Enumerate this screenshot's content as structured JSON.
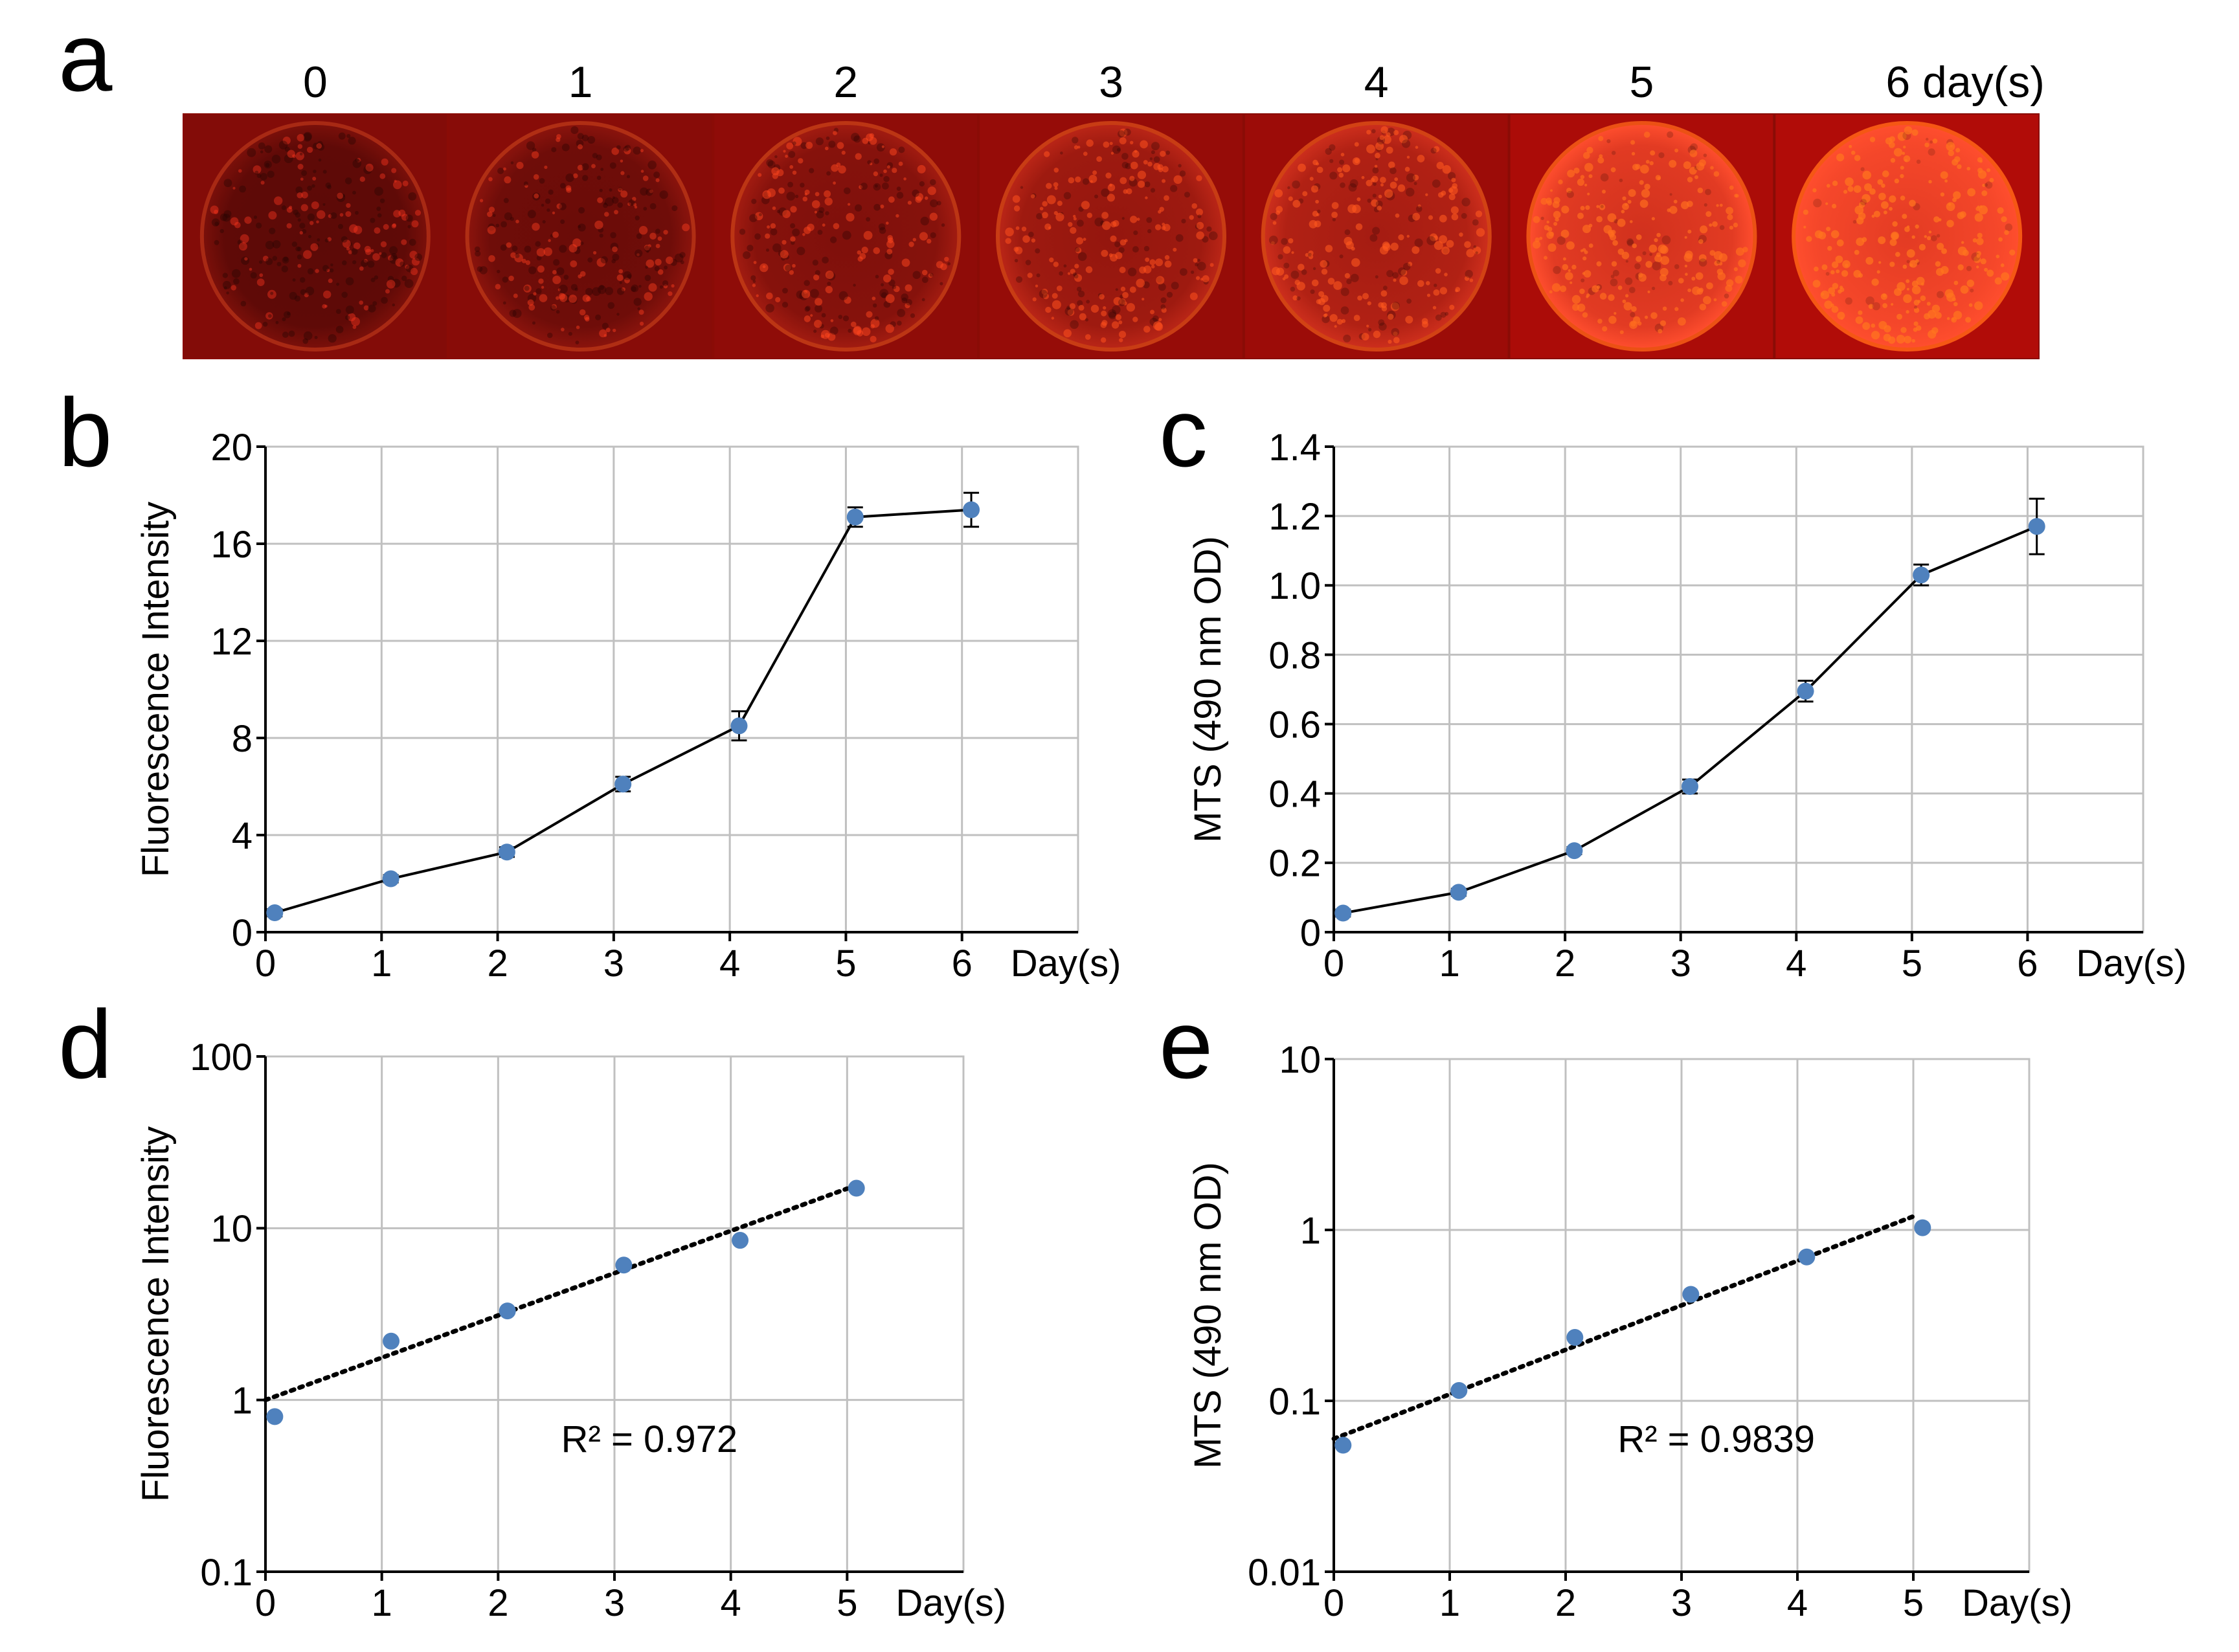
{
  "panel_letters": [
    "a",
    "b",
    "c",
    "d",
    "e"
  ],
  "panel_a": {
    "day_labels": [
      "0",
      "1",
      "2",
      "3",
      "4",
      "5",
      "6 day(s)"
    ],
    "brightness": [
      0.18,
      0.26,
      0.38,
      0.5,
      0.6,
      0.85,
      0.95
    ],
    "base_color": "#d10f08",
    "background_color": "#8a0c06"
  },
  "colors": {
    "marker": "#4f81bd",
    "line": "#000000",
    "grid": "#c0c0c0",
    "axis": "#000000"
  },
  "chart_data": [
    {
      "panel": "b",
      "type": "line",
      "ylabel": "Fluorescence Intensity",
      "xlabel": "Day(s)",
      "scale": "linear",
      "x": [
        0,
        1,
        2,
        3,
        4,
        5,
        6
      ],
      "values": [
        0.8,
        2.2,
        3.3,
        6.1,
        8.5,
        17.1,
        17.4
      ],
      "error": [
        0.15,
        0.15,
        0.2,
        0.3,
        0.6,
        0.4,
        0.7
      ],
      "xlim": [
        0,
        7
      ],
      "ylim": [
        0,
        20
      ],
      "xticks": [
        "0",
        "1",
        "2",
        "3",
        "4",
        "5",
        "6"
      ],
      "yticks": [
        {
          "v": 0,
          "label": "0"
        },
        {
          "v": 4,
          "label": "4"
        },
        {
          "v": 8,
          "label": "8"
        },
        {
          "v": 12,
          "label": "12"
        },
        {
          "v": 16,
          "label": "16"
        },
        {
          "v": 20,
          "label": "20"
        }
      ],
      "grid": true
    },
    {
      "panel": "c",
      "type": "line",
      "ylabel": "MTS (490 nm OD)",
      "xlabel": "Day(s)",
      "scale": "linear",
      "x": [
        0,
        1,
        2,
        3,
        4,
        5,
        6
      ],
      "values": [
        0.055,
        0.115,
        0.235,
        0.42,
        0.695,
        1.03,
        1.17
      ],
      "error": [
        0.01,
        0.01,
        0.01,
        0.02,
        0.03,
        0.03,
        0.08
      ],
      "xlim": [
        0,
        7
      ],
      "ylim": [
        0,
        1.4
      ],
      "xticks": [
        "0",
        "1",
        "2",
        "3",
        "4",
        "5",
        "6"
      ],
      "yticks": [
        {
          "v": 0,
          "label": "0"
        },
        {
          "v": 0.2,
          "label": "0.2"
        },
        {
          "v": 0.4,
          "label": "0.4"
        },
        {
          "v": 0.6,
          "label": "0.6"
        },
        {
          "v": 0.8,
          "label": "0.8"
        },
        {
          "v": 1.0,
          "label": "1.0"
        },
        {
          "v": 1.2,
          "label": "1.2"
        },
        {
          "v": 1.4,
          "label": "1.4"
        }
      ],
      "grid": true
    },
    {
      "panel": "d",
      "type": "scatter",
      "ylabel": "Fluorescence Intensity",
      "xlabel": "Day(s)",
      "scale": "log",
      "x": [
        0,
        1,
        2,
        3,
        4,
        5
      ],
      "values": [
        0.8,
        2.2,
        3.3,
        6.1,
        8.5,
        17.1
      ],
      "trendline": {
        "type": "exponential",
        "start": [
          0,
          1.0
        ],
        "end": [
          5,
          17.0
        ],
        "r2_label": "R² = 0.972"
      },
      "xlim": [
        0,
        6
      ],
      "ylim": [
        0.1,
        100
      ],
      "xticks": [
        "0",
        "1",
        "2",
        "3",
        "4",
        "5"
      ],
      "yticks": [
        {
          "v": 0.1,
          "label": "0.1"
        },
        {
          "v": 1,
          "label": "1"
        },
        {
          "v": 10,
          "label": "10"
        },
        {
          "v": 100,
          "label": "100"
        }
      ],
      "grid": true
    },
    {
      "panel": "e",
      "type": "scatter",
      "ylabel": "MTS (490 nm OD)",
      "xlabel": "Day(s)",
      "scale": "log",
      "x": [
        0,
        1,
        2,
        3,
        4,
        5
      ],
      "values": [
        0.055,
        0.115,
        0.235,
        0.42,
        0.695,
        1.03
      ],
      "trendline": {
        "type": "exponential",
        "start": [
          0,
          0.06
        ],
        "end": [
          5,
          1.2
        ],
        "r2_label": "R² = 0.9839"
      },
      "xlim": [
        0,
        6
      ],
      "ylim": [
        0.01,
        10
      ],
      "xticks": [
        "0",
        "1",
        "2",
        "3",
        "4",
        "5"
      ],
      "yticks": [
        {
          "v": 0.01,
          "label": "0.01"
        },
        {
          "v": 0.1,
          "label": "0.1"
        },
        {
          "v": 1,
          "label": "1"
        },
        {
          "v": 10,
          "label": "10"
        }
      ],
      "grid": true
    }
  ]
}
